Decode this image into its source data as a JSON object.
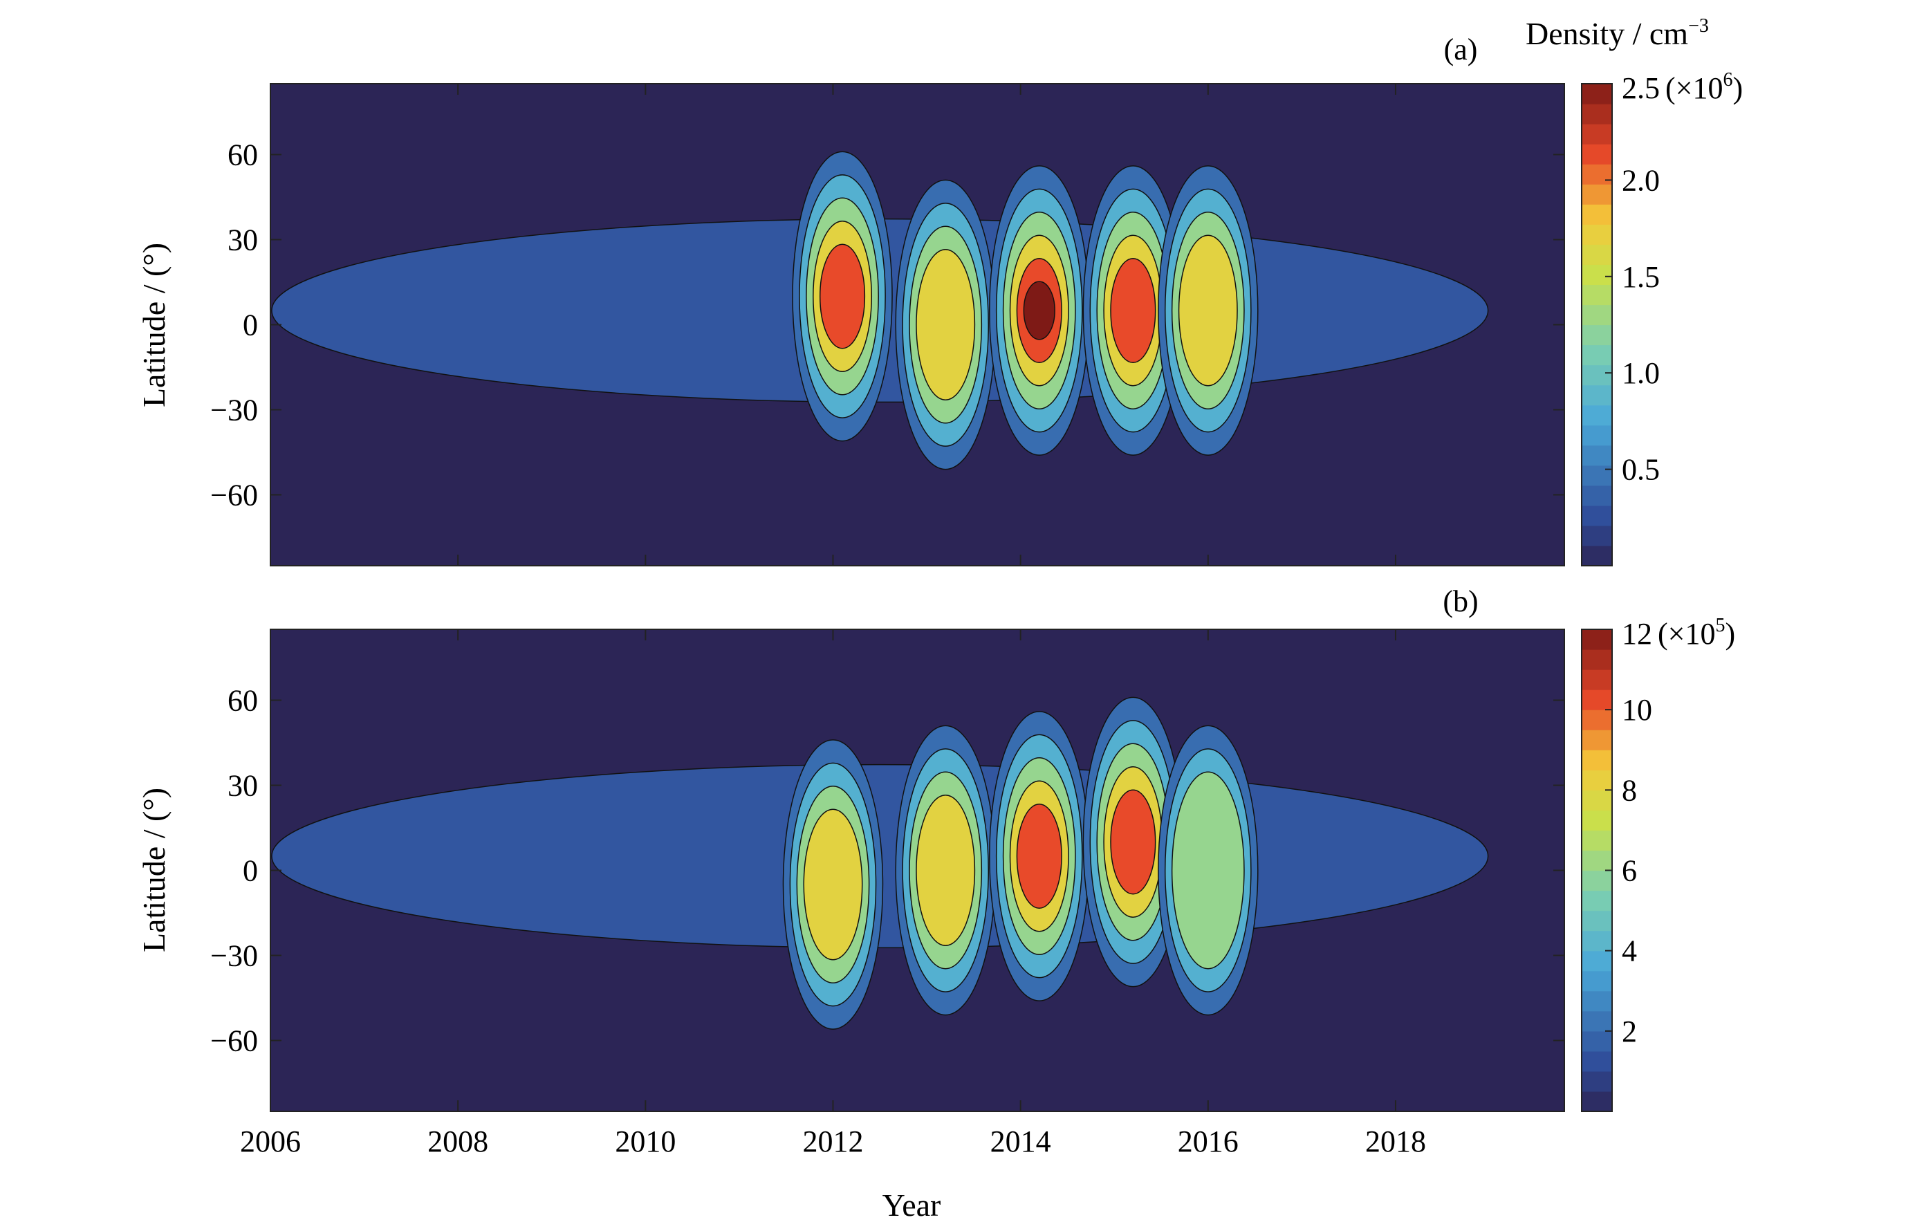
{
  "chart_data": [
    {
      "panel": "(a)",
      "type": "heatmap",
      "style": "filled-contour",
      "xlabel": "Year",
      "ylabel": "Latitude / (°)",
      "x_ticks": [
        2006,
        2008,
        2010,
        2012,
        2014,
        2016,
        2018
      ],
      "y_ticks": [
        60,
        30,
        0,
        -30,
        -60
      ],
      "y_tick_labels": [
        "60",
        "30",
        "0",
        "−30",
        "−60"
      ],
      "xlim": [
        2006,
        2019.8
      ],
      "ylim": [
        -85,
        85
      ],
      "colorbar": {
        "title": "Density / cm",
        "title_exp": "−3",
        "range": [
          0,
          2.5
        ],
        "ticks": [
          0.5,
          1.0,
          1.5,
          2.0,
          2.5
        ],
        "tick_labels": [
          "0.5",
          "1.0",
          "1.5",
          "2.0",
          "2.5"
        ],
        "multiplier_text": "(×10",
        "multiplier_exp": "6",
        "multiplier_close": ")"
      },
      "peaks": [
        {
          "year": 2012.1,
          "lat": 10,
          "value": 2.2
        },
        {
          "year": 2013.2,
          "lat": 0,
          "value": 1.9
        },
        {
          "year": 2014.2,
          "lat": 5,
          "value": 2.4
        },
        {
          "year": 2015.2,
          "lat": 5,
          "value": 2.3
        },
        {
          "year": 2016.0,
          "lat": 5,
          "value": 1.6
        }
      ]
    },
    {
      "panel": "(b)",
      "type": "heatmap",
      "style": "filled-contour",
      "xlabel": "Year",
      "ylabel": "Latitude / (°)",
      "x_ticks": [
        2006,
        2008,
        2010,
        2012,
        2014,
        2016,
        2018
      ],
      "y_ticks": [
        60,
        30,
        0,
        -30,
        -60
      ],
      "y_tick_labels": [
        "60",
        "30",
        "0",
        "−30",
        "−60"
      ],
      "xlim": [
        2006,
        2019.8
      ],
      "ylim": [
        -85,
        85
      ],
      "colorbar": {
        "range": [
          0,
          12
        ],
        "ticks": [
          2,
          4,
          6,
          8,
          10,
          12
        ],
        "tick_labels": [
          "2",
          "4",
          "6",
          "8",
          "10",
          "12"
        ],
        "multiplier_text": "(×10",
        "multiplier_exp": "5",
        "multiplier_close": ")"
      },
      "peaks": [
        {
          "year": 2012.0,
          "lat": -5,
          "value": 9
        },
        {
          "year": 2013.2,
          "lat": 0,
          "value": 8
        },
        {
          "year": 2014.2,
          "lat": 5,
          "value": 11
        },
        {
          "year": 2015.2,
          "lat": 10,
          "value": 10
        },
        {
          "year": 2016.0,
          "lat": 0,
          "value": 6
        }
      ]
    }
  ]
}
